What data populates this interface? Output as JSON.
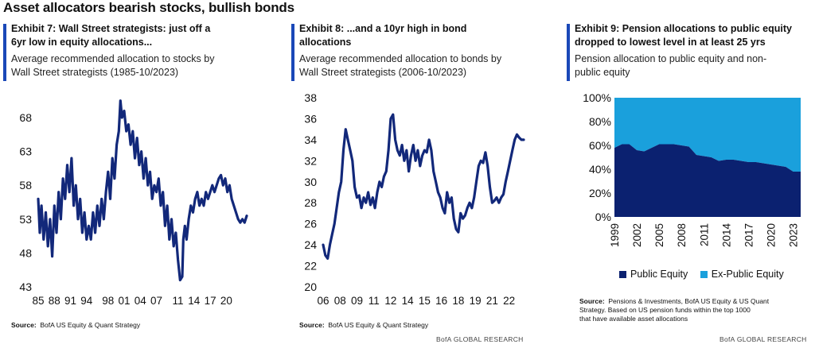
{
  "page": {
    "title": "Asset allocators bearish stocks, bullish bonds",
    "footer": "BofA GLOBAL RESEARCH"
  },
  "exhibit7": {
    "title": "Exhibit 7: Wall Street strategists: just off a 6yr low in equity allocations...",
    "title_l1": "Exhibit 7: Wall Street strategists: just off a",
    "title_l2": "6yr low in equity allocations...",
    "subtitle_l1": "Average recommended allocation to stocks by",
    "subtitle_l2": "Wall Street strategists (1985-10/2023)",
    "source_label": "Source:",
    "source_text": "BofA US Equity & Quant Strategy"
  },
  "exhibit8": {
    "title_l1": "Exhibit 8: ...and a 10yr high in bond",
    "title_l2": "allocations",
    "subtitle_l1": "Average recommended allocation to bonds by",
    "subtitle_l2": "Wall Street strategists (2006-10/2023)",
    "source_label": "Source:",
    "source_text": "BofA US Equity & Quant Strategy"
  },
  "exhibit9": {
    "title_l1": "Exhibit 9: Pension allocations to public equity",
    "title_l2": "dropped to lowest level in at least 25 yrs",
    "subtitle_l1": "Pension allocation to public equity and non-",
    "subtitle_l2": "public equity",
    "source_label": "Source:",
    "source_l1": "Pensions & Investments, BofA US Equity & US Quant",
    "source_l2": "Strategy. Based on US pension funds within the top 1000",
    "source_l3": "that have available asset allocations"
  },
  "colors": {
    "line": "#12287a",
    "public_equity": "#0b2170",
    "ex_public_equity": "#1aa0dc",
    "accent_bar": "#1a48b8"
  },
  "chart_data": [
    {
      "type": "line",
      "title": "Exhibit 7: Wall Street strategists: just off a 6yr low in equity allocations...",
      "subtitle": "Average recommended allocation to stocks by Wall Street strategists (1985-10/2023)",
      "x_tick_labels": [
        "85",
        "88",
        "91",
        "94",
        "98",
        "01",
        "04",
        "07",
        "11",
        "14",
        "17",
        "20"
      ],
      "x_ticks": [
        1985,
        1988,
        1991,
        1994,
        1998,
        2001,
        2004,
        2007,
        2011,
        2014,
        2017,
        2020
      ],
      "xlim": [
        1985,
        2023.8
      ],
      "ylim": [
        43,
        70
      ],
      "yticks": [
        43,
        48,
        53,
        58,
        63,
        68
      ],
      "series": [
        {
          "x": [
            1985.0,
            1985.3,
            1985.6,
            1986.0,
            1986.4,
            1986.8,
            1987.2,
            1987.6,
            1988.0,
            1988.4,
            1988.8,
            1989.2,
            1989.6,
            1990.0,
            1990.4,
            1990.8,
            1991.2,
            1991.6,
            1992.0,
            1992.4,
            1992.8,
            1993.2,
            1993.6,
            1994.0,
            1994.4,
            1994.8,
            1995.2,
            1995.6,
            1996.0,
            1996.4,
            1996.8,
            1997.2,
            1997.6,
            1998.0,
            1998.4,
            1998.8,
            1999.2,
            1999.6,
            2000.0,
            2000.3,
            2000.6,
            2001.0,
            2001.4,
            2001.8,
            2002.2,
            2002.6,
            2003.0,
            2003.4,
            2003.8,
            2004.2,
            2004.6,
            2005.0,
            2005.4,
            2005.8,
            2006.2,
            2006.6,
            2007.0,
            2007.4,
            2007.8,
            2008.2,
            2008.6,
            2009.0,
            2009.4,
            2009.8,
            2010.2,
            2010.6,
            2011.0,
            2011.4,
            2011.8,
            2012.0,
            2012.3,
            2012.6,
            2013.0,
            2013.4,
            2013.8,
            2014.2,
            2014.6,
            2015.0,
            2015.4,
            2015.8,
            2016.2,
            2016.6,
            2017.0,
            2017.4,
            2017.8,
            2018.2,
            2018.6,
            2019.0,
            2019.4,
            2019.8,
            2020.2,
            2020.6,
            2021.0,
            2021.4,
            2021.8,
            2022.2,
            2022.6,
            2023.0,
            2023.4,
            2023.8
          ],
          "y": [
            56,
            51,
            55,
            50,
            54,
            49,
            53,
            47.5,
            55,
            51,
            57,
            53,
            59,
            56,
            61,
            57,
            62,
            55,
            58,
            53,
            56,
            51,
            54,
            50,
            52,
            50,
            54,
            51,
            55,
            52,
            56,
            53,
            57,
            60,
            56,
            62,
            59,
            64,
            66,
            70.5,
            68,
            69,
            66,
            67,
            64,
            66,
            62,
            65,
            61,
            63,
            59,
            62,
            58,
            60,
            56,
            58,
            57,
            59,
            55,
            57,
            52,
            55,
            50,
            53,
            49,
            51,
            47,
            44,
            44.5,
            50,
            52,
            50,
            53,
            55,
            54,
            56,
            57,
            55,
            56,
            55,
            57,
            56,
            57,
            58,
            57,
            58,
            59,
            59.5,
            58,
            59,
            57,
            58,
            56,
            55,
            54,
            53,
            52.5,
            53,
            52.5,
            53.5
          ]
        }
      ]
    },
    {
      "type": "line",
      "title": "Exhibit 8: ...and a 10yr high in bond allocations",
      "subtitle": "Average recommended allocation to bonds by Wall Street strategists (2006-10/2023)",
      "x_tick_labels": [
        "06",
        "08",
        "09",
        "11",
        "12",
        "14",
        "15",
        "16",
        "18",
        "19",
        "21",
        "22"
      ],
      "x_ticks": [
        2006,
        2007.5,
        2009,
        2010.5,
        2012,
        2013.5,
        2015,
        2016.5,
        2018,
        2019.5,
        2021,
        2022.5
      ],
      "xlim": [
        2006,
        2023.8
      ],
      "ylim": [
        20,
        38
      ],
      "yticks": [
        20,
        22,
        24,
        26,
        28,
        30,
        32,
        34,
        36,
        38
      ],
      "series": [
        {
          "x": [
            2006.0,
            2006.2,
            2006.4,
            2006.6,
            2006.8,
            2007.0,
            2007.2,
            2007.4,
            2007.6,
            2007.8,
            2008.0,
            2008.2,
            2008.4,
            2008.6,
            2008.8,
            2009.0,
            2009.2,
            2009.4,
            2009.6,
            2009.8,
            2010.0,
            2010.2,
            2010.4,
            2010.6,
            2010.8,
            2011.0,
            2011.2,
            2011.4,
            2011.6,
            2011.8,
            2012.0,
            2012.2,
            2012.4,
            2012.6,
            2012.8,
            2013.0,
            2013.2,
            2013.4,
            2013.6,
            2013.8,
            2014.0,
            2014.2,
            2014.4,
            2014.6,
            2014.8,
            2015.0,
            2015.2,
            2015.4,
            2015.6,
            2015.8,
            2016.0,
            2016.2,
            2016.4,
            2016.6,
            2016.8,
            2017.0,
            2017.2,
            2017.4,
            2017.6,
            2017.8,
            2018.0,
            2018.2,
            2018.4,
            2018.6,
            2018.8,
            2019.0,
            2019.2,
            2019.4,
            2019.6,
            2019.8,
            2020.0,
            2020.2,
            2020.4,
            2020.6,
            2020.8,
            2021.0,
            2021.2,
            2021.4,
            2021.6,
            2021.8,
            2022.0,
            2022.2,
            2022.4,
            2022.6,
            2022.8,
            2023.0,
            2023.2,
            2023.4,
            2023.6,
            2023.8
          ],
          "y": [
            24,
            23,
            22.7,
            24,
            25,
            26,
            27.5,
            29,
            30,
            33,
            35,
            34,
            33,
            32,
            29.5,
            28.5,
            28.7,
            27.5,
            28.5,
            28,
            29,
            27.8,
            28.5,
            27.5,
            29,
            30,
            29.5,
            30.5,
            31,
            33,
            36,
            36.4,
            34,
            33,
            32.5,
            33.5,
            32,
            33,
            31,
            32.5,
            33.5,
            32,
            33,
            31.5,
            32.5,
            33,
            32.8,
            34,
            33,
            31,
            30,
            29,
            28.5,
            27.5,
            27,
            29,
            28,
            28.5,
            26.5,
            25.5,
            25.2,
            27,
            26.5,
            26.8,
            27.5,
            28,
            27.5,
            28.5,
            30,
            31.5,
            32,
            31.8,
            32.8,
            31.5,
            29.5,
            28,
            28.2,
            28.5,
            28,
            28.5,
            28.8,
            30,
            31,
            32,
            33,
            34,
            34.5,
            34.2,
            34,
            34
          ]
        }
      ]
    },
    {
      "type": "area",
      "stacked": true,
      "title": "Exhibit 9: Pension allocations to public equity dropped to lowest level in at least 25 yrs",
      "subtitle": "Pension allocation to public equity and non-public equity",
      "x": [
        1999,
        2000,
        2001,
        2002,
        2003,
        2004,
        2005,
        2006,
        2007,
        2008,
        2009,
        2010,
        2011,
        2012,
        2013,
        2014,
        2015,
        2016,
        2017,
        2018,
        2019,
        2020,
        2021,
        2022,
        2023,
        2024
      ],
      "x_tick_labels": [
        "1999",
        "2002",
        "2005",
        "2008",
        "2011",
        "2014",
        "2017",
        "2020",
        "2023"
      ],
      "x_ticks": [
        1999,
        2002,
        2005,
        2008,
        2011,
        2014,
        2017,
        2020,
        2023
      ],
      "xlim": [
        1999,
        2024
      ],
      "ylim": [
        0,
        100
      ],
      "y_tick_labels": [
        "0%",
        "20%",
        "40%",
        "60%",
        "80%",
        "100%"
      ],
      "yticks": [
        0,
        20,
        40,
        60,
        80,
        100
      ],
      "series": [
        {
          "name": "Public Equity",
          "values": [
            58,
            61,
            61,
            56,
            55,
            58,
            61,
            61,
            61,
            60,
            59,
            52,
            51,
            50,
            47,
            48,
            48,
            47,
            46,
            46,
            45,
            44,
            43,
            42,
            38,
            38
          ]
        },
        {
          "name": "Ex-Public Equity",
          "values": [
            42,
            39,
            39,
            44,
            45,
            42,
            39,
            39,
            39,
            40,
            41,
            48,
            49,
            50,
            53,
            52,
            52,
            53,
            54,
            54,
            55,
            56,
            57,
            58,
            62,
            62
          ]
        }
      ],
      "legend": "bottom"
    }
  ]
}
